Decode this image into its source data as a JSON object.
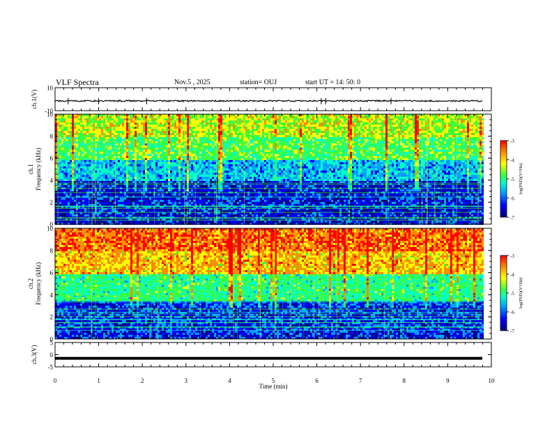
{
  "chart_data": [
    {
      "type": "line",
      "panel": "ch1-waveform",
      "ylabel": "ch.1(V)",
      "ylim": [
        -10,
        10
      ],
      "yticks": [
        "10",
        "-10"
      ],
      "series": [
        {
          "baseline_volts": -1.5,
          "noise_amplitude_volts": 0.6,
          "spikes_at_min": [
            0.3,
            1.0,
            2.1,
            6.1,
            6.2,
            7.7
          ]
        }
      ]
    },
    {
      "type": "heatmap",
      "panel": "ch1-spectrogram",
      "ylabel_line1": "ch.1",
      "ylabel_line2": "Frequency (kHz)",
      "ylim": [
        0,
        10
      ],
      "yticks": [
        "0",
        "2",
        "4",
        "6",
        "8",
        "10"
      ],
      "colorbar": {
        "label": "log(PSD)(V²/Hz)",
        "ticks": [
          "-3",
          "-4",
          "-5",
          "-6",
          "-7"
        ],
        "range": [
          -7,
          -3
        ]
      },
      "bands_khz": [
        {
          "from": 0,
          "to": 4,
          "log_psd": -6.3
        },
        {
          "from": 4,
          "to": 6,
          "log_psd": -5.6
        },
        {
          "from": 6,
          "to": 8,
          "log_psd": -4.8
        },
        {
          "from": 8,
          "to": 10,
          "log_psd": -4.4
        }
      ]
    },
    {
      "type": "heatmap",
      "panel": "ch2-spectrogram",
      "ylabel_line1": "ch.2",
      "ylabel_line2": "Frequency (kHz)",
      "ylim": [
        0,
        10
      ],
      "yticks": [
        "0",
        "2",
        "4",
        "6",
        "8",
        "10"
      ],
      "colorbar": {
        "label": "log(PSD)(V²/Hz)",
        "ticks": [
          "-3",
          "-4",
          "-5",
          "-6",
          "-7"
        ],
        "range": [
          -7,
          -3
        ]
      },
      "bands_khz": [
        {
          "from": 0,
          "to": 3.5,
          "log_psd": -6.2
        },
        {
          "from": 3.5,
          "to": 6,
          "log_psd": -5.0
        },
        {
          "from": 6,
          "to": 8,
          "log_psd": -4.0
        },
        {
          "from": 8,
          "to": 10,
          "log_psd": -3.6
        }
      ]
    },
    {
      "type": "line",
      "panel": "ch3-waveform",
      "ylabel": "ch.3(V)",
      "ylim": [
        -5,
        5
      ],
      "yticks": [
        "5",
        "0",
        "-5"
      ],
      "series": [
        {
          "baseline_volts": -1.5
        }
      ]
    }
  ],
  "header": {
    "title": "VLF Spectra",
    "date": "Nov.5 , 2025",
    "station": "station= OUJ",
    "start": "start UT = 14: 50: 0"
  },
  "xaxis": {
    "label": "Time (min)",
    "xlim": [
      0,
      10
    ],
    "ticks": [
      "0",
      "1",
      "2",
      "3",
      "4",
      "5",
      "6",
      "7",
      "8",
      "9",
      "10"
    ]
  },
  "colors": {
    "colormap": [
      "#00007a",
      "#0000ff",
      "#00a0ff",
      "#00ffc8",
      "#3cff3c",
      "#ffff00",
      "#ff8c00",
      "#ff0000"
    ]
  }
}
